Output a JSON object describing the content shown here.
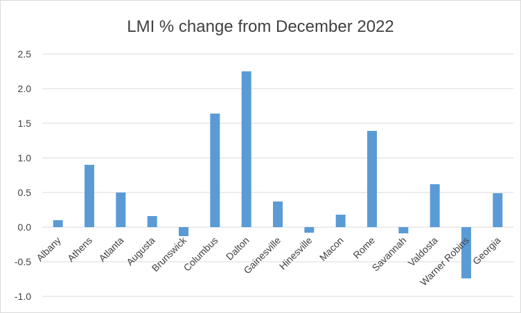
{
  "chart_data": {
    "type": "bar",
    "title": "LMI % change from December 2022",
    "xlabel": "",
    "ylabel": "",
    "categories": [
      "Albany",
      "Athens",
      "Atlanta",
      "Augusta",
      "Brunswick",
      "Columbus",
      "Dalton",
      "Gainesville",
      "Hinesville",
      "Macon",
      "Rome",
      "Savannah",
      "Valdosta",
      "Warner Robins",
      "Georgia"
    ],
    "values": [
      0.1,
      0.9,
      0.5,
      0.16,
      -0.13,
      1.64,
      2.25,
      0.37,
      -0.08,
      0.18,
      1.39,
      -0.09,
      0.62,
      -0.74,
      0.49
    ],
    "ylim": [
      -1.0,
      2.5
    ],
    "yticks": [
      -1.0,
      -0.5,
      0.0,
      0.5,
      1.0,
      1.5,
      2.0,
      2.5
    ],
    "ytick_labels": [
      "-1.0",
      "-0.5",
      "0.0",
      "0.5",
      "1.0",
      "1.5",
      "2.0",
      "2.5"
    ],
    "grid": true,
    "legend": "none",
    "colors": {
      "bar": "#5b9bd5",
      "grid": "#d9d9d9",
      "text": "#404040"
    }
  }
}
